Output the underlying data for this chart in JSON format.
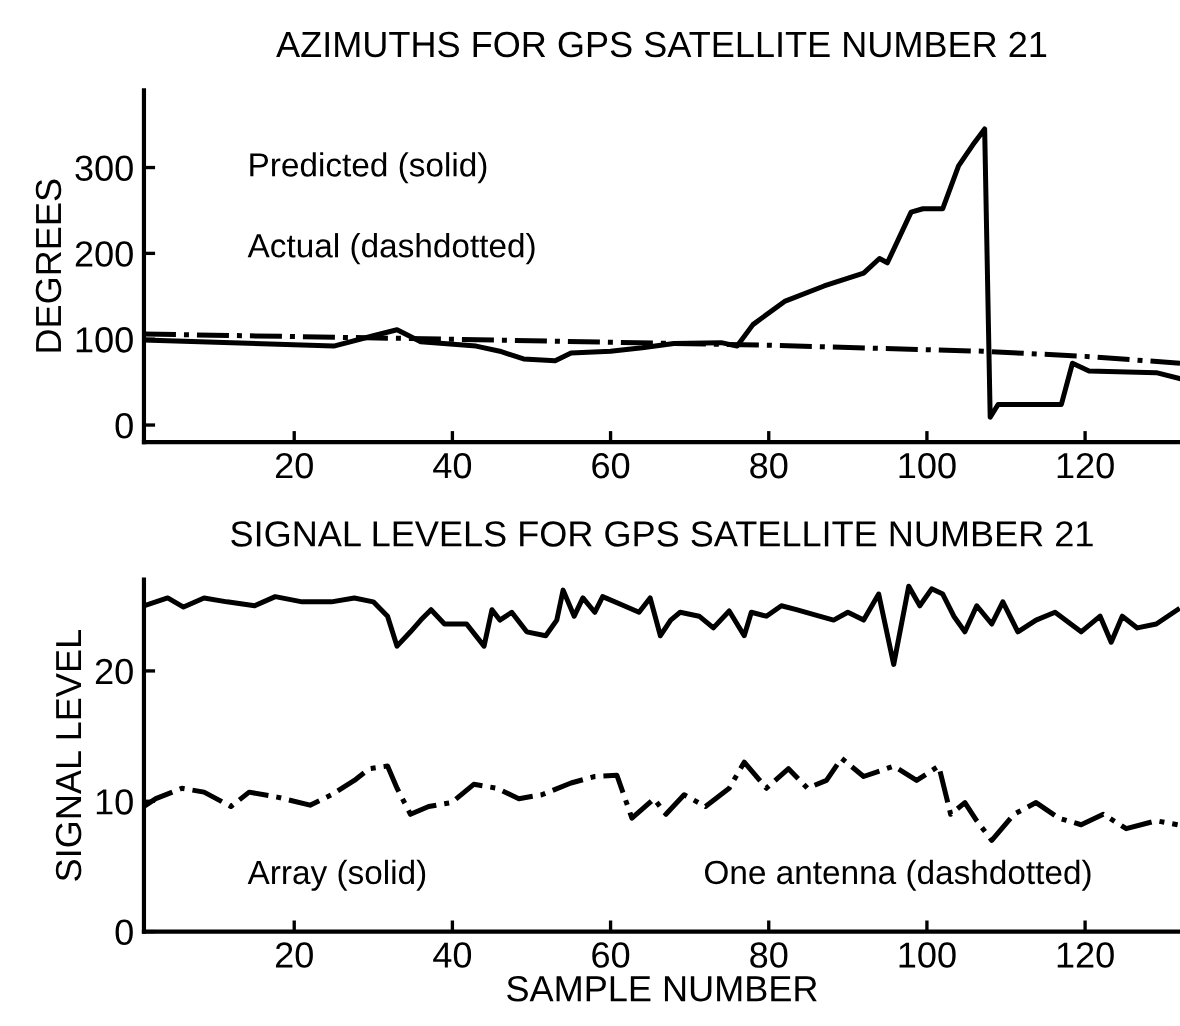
{
  "chart_data": [
    {
      "type": "line",
      "title": "AZIMUTHS FOR GPS SATELLITE NUMBER 21",
      "ylabel": "DEGREES",
      "annotations": [
        "Predicted (solid)",
        "Actual (dashdotted)"
      ],
      "xlim": [
        1,
        132
      ],
      "xticks": [
        20,
        40,
        60,
        80,
        100,
        120
      ],
      "ylim": [
        -20,
        390
      ],
      "yticks": [
        0,
        100,
        200,
        300
      ],
      "grid": false,
      "legend": false,
      "series": [
        {
          "color": "#000000",
          "line_style": "solid",
          "x": [
            1,
            25,
            30,
            33,
            36,
            43,
            46,
            49,
            53,
            55,
            60,
            64,
            68,
            74,
            76,
            78,
            82,
            87,
            92,
            94,
            95,
            98,
            99.5,
            102,
            104,
            106,
            107.3,
            108,
            109,
            117,
            118.4,
            120.5,
            129,
            132
          ],
          "values": [
            99,
            92,
            104,
            111,
            97,
            92,
            86,
            77,
            75,
            84,
            86,
            90,
            95,
            96,
            92,
            117,
            144,
            162,
            177,
            194,
            189,
            248,
            252,
            252,
            302,
            329,
            345,
            9,
            24,
            24,
            72,
            63,
            61,
            54
          ]
        },
        {
          "color": "#000000",
          "line_style": "dashdot",
          "x": [
            1,
            40,
            80,
            107,
            120,
            132
          ],
          "values": [
            106,
            100,
            93,
            86,
            80,
            72
          ]
        }
      ]
    },
    {
      "type": "line",
      "title": "SIGNAL LEVELS FOR GPS SATELLITE NUMBER 21",
      "xlabel": "SAMPLE NUMBER",
      "ylabel": "SIGNAL LEVEL",
      "annotations": [
        "Array (solid)",
        "One antenna (dashdotted)"
      ],
      "xlim": [
        1,
        132
      ],
      "xticks": [
        20,
        40,
        60,
        80,
        100,
        120
      ],
      "ylim": [
        0,
        27
      ],
      "yticks": [
        0,
        10,
        20
      ],
      "grid": false,
      "legend": false,
      "series": [
        {
          "color": "#000000",
          "line_style": "solid",
          "x": [
            1,
            4,
            6,
            8.6,
            11.5,
            15,
            17.6,
            21,
            24.7,
            27.6,
            30,
            31.8,
            33,
            34.7,
            36,
            37.3,
            39,
            41.8,
            44,
            45,
            46,
            47.5,
            49.4,
            51.8,
            53.2,
            54,
            55.4,
            56.5,
            58,
            59,
            61.7,
            63.6,
            65,
            66.3,
            67.6,
            68.8,
            71.2,
            73,
            75,
            76.9,
            77.8,
            79.7,
            81.6,
            83.5,
            86.4,
            88.2,
            90,
            92,
            93.9,
            95.8,
            97.7,
            99.1,
            100.6,
            102,
            103.4,
            104.8,
            106.3,
            108.2,
            109.6,
            111.5,
            113.8,
            116.2,
            119.5,
            121.9,
            123.3,
            124.7,
            126.6,
            129,
            131.7
          ],
          "values": [
            25.0,
            25.6,
            24.9,
            25.6,
            25.3,
            25.0,
            25.7,
            25.3,
            25.3,
            25.6,
            25.3,
            24.2,
            21.9,
            23.0,
            23.9,
            24.7,
            23.6,
            23.6,
            21.9,
            24.7,
            23.9,
            24.5,
            23.0,
            22.7,
            23.9,
            26.2,
            24.2,
            25.6,
            24.5,
            25.7,
            25.0,
            24.5,
            25.6,
            22.7,
            23.9,
            24.5,
            24.2,
            23.3,
            24.6,
            22.7,
            24.5,
            24.2,
            25.0,
            24.7,
            24.2,
            23.9,
            24.5,
            23.9,
            25.9,
            20.5,
            26.5,
            25.0,
            26.3,
            25.9,
            24.2,
            23.0,
            25.0,
            23.6,
            25.3,
            23.0,
            23.9,
            24.5,
            23.0,
            24.2,
            22.2,
            24.2,
            23.3,
            23.6,
            24.7
          ]
        },
        {
          "color": "#000000",
          "line_style": "dashdot",
          "x": [
            1,
            2.5,
            5.8,
            8.6,
            12,
            14.3,
            18,
            22,
            24.7,
            27.6,
            29.5,
            31.8,
            33,
            34.7,
            37,
            39.9,
            42.7,
            45.6,
            48.4,
            51.3,
            55,
            58,
            60.8,
            62.7,
            65.5,
            67,
            69.3,
            72,
            75,
            76.9,
            79.7,
            82.5,
            84.9,
            87.3,
            89.2,
            92,
            95.8,
            98.7,
            101.5,
            103,
            104.8,
            106.3,
            108.2,
            111,
            113.8,
            116.7,
            119.5,
            122.3,
            125.2,
            129,
            131.7
          ],
          "values": [
            9.6,
            10.2,
            11.0,
            10.7,
            9.6,
            10.7,
            10.3,
            9.7,
            10.5,
            11.6,
            12.5,
            12.7,
            11.0,
            9.0,
            9.6,
            9.9,
            11.3,
            11.0,
            10.2,
            10.5,
            11.4,
            11.9,
            12.0,
            8.7,
            10.2,
            9.0,
            10.5,
            9.6,
            11.0,
            13.0,
            11.0,
            12.5,
            11.0,
            11.6,
            13.3,
            11.9,
            12.7,
            11.6,
            12.7,
            9.0,
            9.9,
            8.5,
            7.0,
            9.0,
            9.9,
            8.7,
            8.2,
            9.0,
            7.9,
            8.5,
            8.2
          ]
        }
      ]
    }
  ]
}
